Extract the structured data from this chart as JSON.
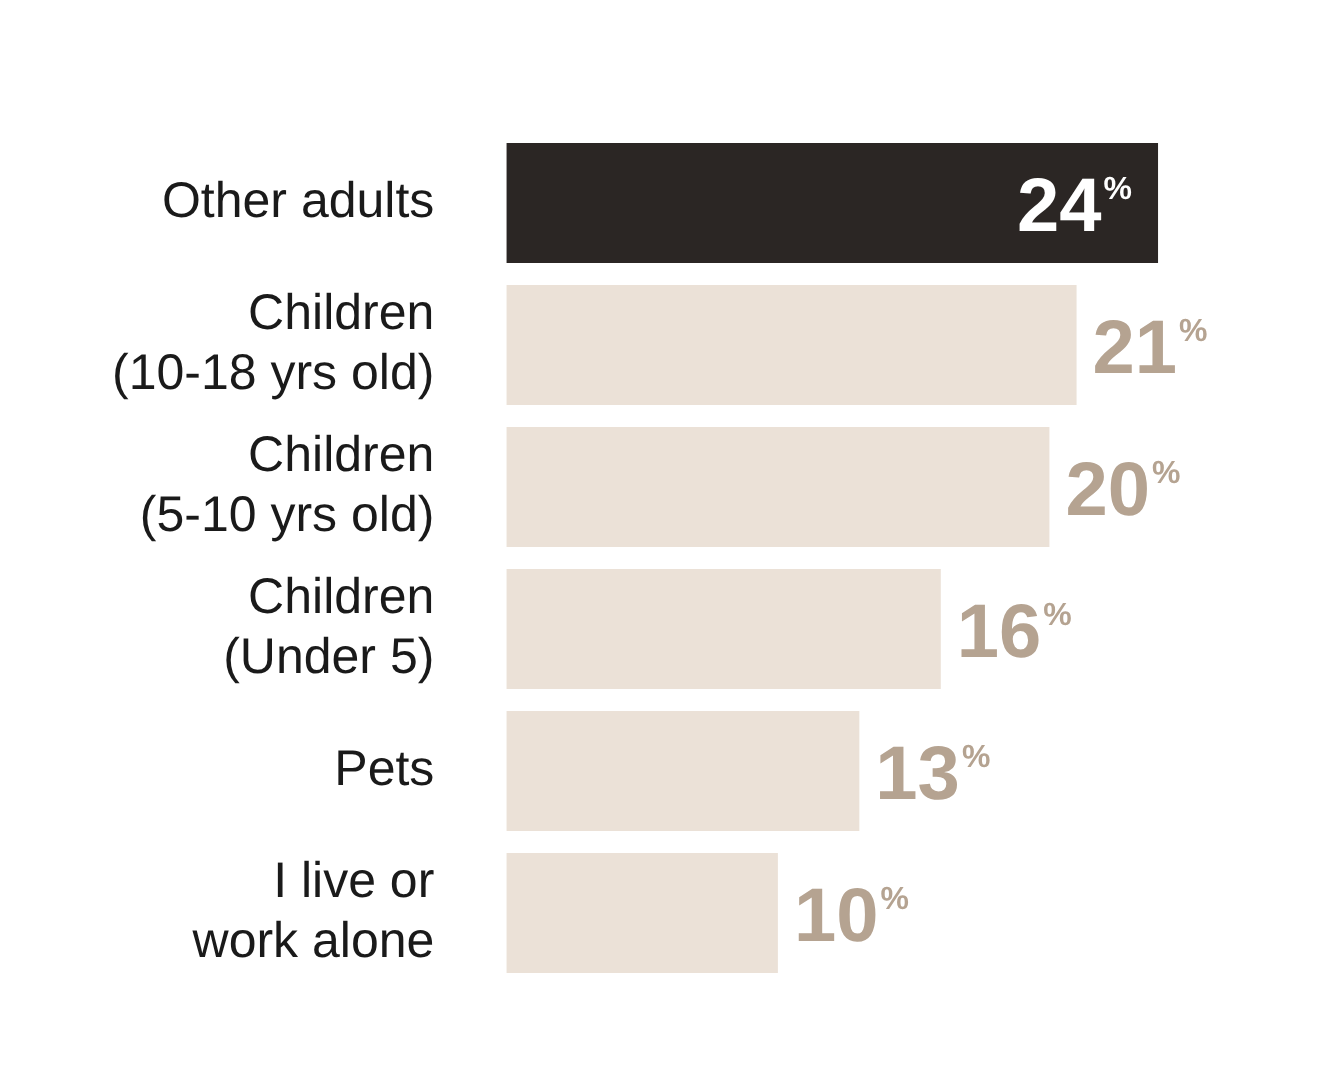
{
  "chart_data": {
    "type": "bar",
    "orientation": "horizontal",
    "categories": [
      "Other adults",
      "Children\n(10-18 yrs old)",
      "Children\n(5-10 yrs old)",
      "Children\n(Under 5)",
      "Pets",
      "I live or\nwork alone"
    ],
    "values": [
      24,
      21,
      20,
      16,
      13,
      10
    ],
    "colors": [
      "#2b2624",
      "#ebe1d7",
      "#ebe1d7",
      "#ebe1d7",
      "#ebe1d7",
      "#ebe1d7"
    ],
    "value_labels": [
      "24$^{%}$",
      "21$^{%}$",
      "20$^{%}$",
      "16$^{%}$",
      "13$^{%}$",
      "10$^{%}$"
    ],
    "legend": false,
    "grid": false
  }
}
